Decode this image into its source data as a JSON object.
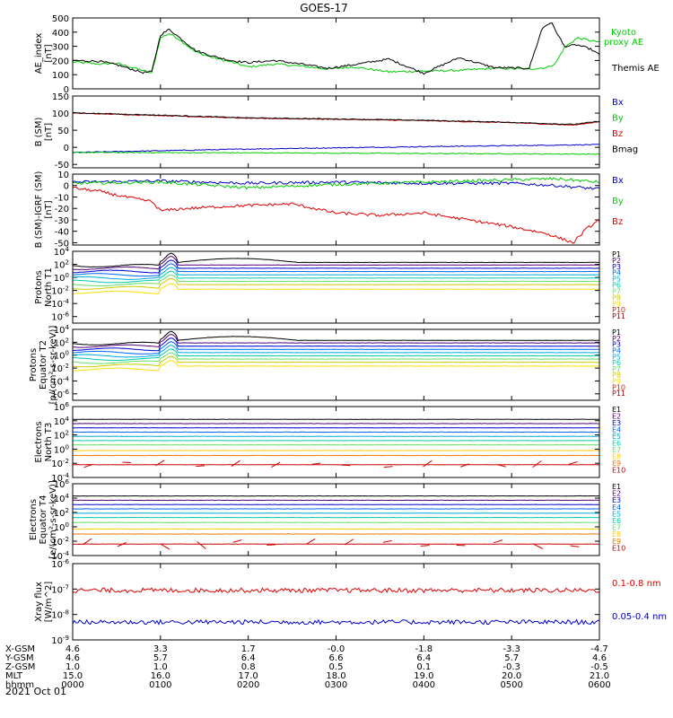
{
  "title": "GOES-17",
  "date_label": "2021 Oct 01",
  "chart_data": [
    {
      "type": "line",
      "ylabel": [
        "AE_index",
        "[nT]"
      ],
      "ylim": [
        0,
        500
      ],
      "yticks": [
        "0",
        "100",
        "200",
        "300",
        "400",
        "500"
      ],
      "legend_placement": "right",
      "series": [
        {
          "name": "Kyoto\nproxy AE",
          "color": "#00cc00",
          "x": [
            0.0,
            0.3,
            0.5,
            0.8,
            0.9,
            1.0,
            1.1,
            1.2,
            1.4,
            1.6,
            1.8,
            2.0,
            2.3,
            2.6,
            2.9,
            3.2,
            3.6,
            4.0,
            4.4,
            4.8,
            5.2,
            5.4,
            5.5,
            5.6,
            5.75,
            5.9,
            6.0
          ],
          "y": [
            190,
            175,
            180,
            130,
            110,
            360,
            390,
            355,
            260,
            220,
            190,
            155,
            175,
            160,
            140,
            155,
            120,
            125,
            130,
            145,
            140,
            150,
            180,
            290,
            360,
            340,
            330
          ]
        },
        {
          "name": "Themis AE",
          "color": "#000000",
          "x": [
            0.0,
            0.3,
            0.5,
            0.8,
            0.9,
            1.0,
            1.1,
            1.2,
            1.4,
            1.6,
            1.8,
            2.0,
            2.3,
            2.6,
            2.9,
            3.2,
            3.6,
            4.0,
            4.4,
            4.8,
            5.2,
            5.35,
            5.45,
            5.6,
            5.75,
            5.9,
            6.0
          ],
          "y": [
            200,
            195,
            170,
            115,
            120,
            380,
            420,
            370,
            270,
            230,
            200,
            185,
            200,
            175,
            145,
            170,
            210,
            110,
            220,
            150,
            145,
            430,
            470,
            300,
            310,
            280,
            240
          ]
        }
      ]
    },
    {
      "type": "line",
      "ylabel": [
        "B (SM)",
        "[nT]"
      ],
      "ylim": [
        -60,
        150
      ],
      "yticks": [
        "-50",
        "0",
        "50",
        "100",
        "150"
      ],
      "legend_placement": "right",
      "series": [
        {
          "name": "Bx",
          "color": "#0000cc",
          "x": [
            0,
            2,
            4,
            6
          ],
          "y": [
            -15,
            -5,
            2,
            8
          ]
        },
        {
          "name": "By",
          "color": "#00cc00",
          "x": [
            0,
            2,
            4,
            6
          ],
          "y": [
            -15,
            -16,
            -18,
            -20
          ]
        },
        {
          "name": "Bz",
          "color": "#dd0000",
          "x": [
            0,
            1,
            2,
            3,
            4,
            5,
            5.7,
            6
          ],
          "y": [
            100,
            93,
            85,
            82,
            78,
            72,
            65,
            75
          ]
        },
        {
          "name": "Bmag",
          "color": "#000000",
          "x": [
            0,
            1,
            2,
            3,
            4,
            5,
            5.7,
            6
          ],
          "y": [
            101,
            94,
            86,
            83,
            79,
            73,
            67,
            76
          ]
        }
      ]
    },
    {
      "type": "line",
      "ylabel": [
        "B (SM)-IGRF (SM)",
        "[nT]"
      ],
      "ylim": [
        -52,
        10
      ],
      "yticks": [
        "-50",
        "-40",
        "-30",
        "-20",
        "-10",
        "0",
        "10"
      ],
      "legend_placement": "right",
      "series": [
        {
          "name": "Bx",
          "color": "#0000cc",
          "x": [
            0,
            1,
            2,
            3,
            4,
            5,
            5.5,
            6
          ],
          "y": [
            3,
            4,
            2,
            3,
            2,
            2,
            0,
            -3
          ]
        },
        {
          "name": "By",
          "color": "#00cc00",
          "x": [
            0,
            1,
            2,
            3,
            4,
            5,
            5.5,
            6
          ],
          "y": [
            2,
            3,
            -2,
            1,
            3,
            5,
            6,
            3
          ]
        },
        {
          "name": "Bz",
          "color": "#dd0000",
          "x": [
            0,
            0.3,
            0.6,
            0.9,
            1.0,
            1.3,
            1.8,
            2.5,
            3.0,
            3.5,
            4.0,
            4.5,
            5.0,
            5.4,
            5.7,
            5.85,
            6.0
          ],
          "y": [
            -2,
            -5,
            -10,
            -14,
            -22,
            -20,
            -18,
            -16,
            -24,
            -26,
            -24,
            -30,
            -36,
            -42,
            -50,
            -38,
            -30
          ]
        }
      ]
    },
    {
      "type": "line",
      "log": true,
      "ylabel": [
        "Protons",
        "North T1"
      ],
      "ylim_exp": [
        -7,
        4
      ],
      "yticks": [
        "10^-6",
        "10^-4",
        "10^-2",
        "10^0",
        "10^2",
        "10^4"
      ],
      "legend_placement": "right",
      "series": [
        {
          "name": "P1",
          "color": "#000000",
          "base": 2.3
        },
        {
          "name": "P2",
          "color": "#550077",
          "base": 1.9
        },
        {
          "name": "P3",
          "color": "#0000cc",
          "base": 1.4
        },
        {
          "name": "P4",
          "color": "#0066ee",
          "base": 0.9
        },
        {
          "name": "P5",
          "color": "#00aadd",
          "base": 0.4
        },
        {
          "name": "P6",
          "color": "#00ccaa",
          "base": -0.1
        },
        {
          "name": "P7",
          "color": "#66dd66",
          "base": -0.6
        },
        {
          "name": "P8",
          "color": "#cccc00",
          "base": -1.1
        },
        {
          "name": "P9",
          "color": "#ffdd00",
          "base": -1.8
        },
        {
          "name": "P10",
          "color": "#dd2200",
          "base": null
        },
        {
          "name": "P11",
          "color": "#aa0000",
          "base": null
        }
      ]
    },
    {
      "type": "line",
      "log": true,
      "ylabel": [
        "Protons",
        "Equator T2",
        "[p/(cm²-s-sr-keV)]"
      ],
      "ylim_exp": [
        -7,
        4
      ],
      "yticks": [
        "10^-6",
        "10^-4",
        "10^-2",
        "10^0",
        "10^2",
        "10^4"
      ],
      "legend_placement": "right",
      "series": [
        {
          "name": "P1",
          "color": "#000000",
          "base": 2.3
        },
        {
          "name": "P2",
          "color": "#550077",
          "base": 1.9
        },
        {
          "name": "P3",
          "color": "#0000cc",
          "base": 1.4
        },
        {
          "name": "P4",
          "color": "#0066ee",
          "base": 0.9
        },
        {
          "name": "P5",
          "color": "#00aadd",
          "base": 0.4
        },
        {
          "name": "P6",
          "color": "#00ccaa",
          "base": -0.1
        },
        {
          "name": "P7",
          "color": "#66dd66",
          "base": -0.6
        },
        {
          "name": "P8",
          "color": "#cccc00",
          "base": -1.1
        },
        {
          "name": "P9",
          "color": "#ffdd00",
          "base": -1.7
        },
        {
          "name": "P10",
          "color": "#dd2200",
          "base": null
        },
        {
          "name": "P11",
          "color": "#aa0000",
          "base": null
        }
      ]
    },
    {
      "type": "line",
      "log": true,
      "ylabel": [
        "Electrons",
        "North T3"
      ],
      "ylim_exp": [
        -4,
        6
      ],
      "yticks": [
        "10^-4",
        "10^-2",
        "10^0",
        "10^2",
        "10^4",
        "10^6"
      ],
      "legend_placement": "right",
      "series": [
        {
          "name": "E1",
          "color": "#000000",
          "base": 4.2
        },
        {
          "name": "E2",
          "color": "#550077",
          "base": 3.6
        },
        {
          "name": "E3",
          "color": "#0000cc",
          "base": 3.0
        },
        {
          "name": "E4",
          "color": "#0066ee",
          "base": 2.4
        },
        {
          "name": "E5",
          "color": "#00aadd",
          "base": 1.8
        },
        {
          "name": "E6",
          "color": "#00ccaa",
          "base": 1.2
        },
        {
          "name": "E7",
          "color": "#66dd66",
          "base": 0.6
        },
        {
          "name": "E8",
          "color": "#ffcc00",
          "base": -0.2
        },
        {
          "name": "E9",
          "color": "#ee7700",
          "base": -0.9
        },
        {
          "name": "E10",
          "color": "#cc0000",
          "base": -2.2
        }
      ]
    },
    {
      "type": "line",
      "log": true,
      "ylabel": [
        "Electrons",
        "Equator T4",
        "[e/(cm²-s-sr-keV)]"
      ],
      "ylim_exp": [
        -4,
        6
      ],
      "yticks": [
        "10^-4",
        "10^-2",
        "10^0",
        "10^2",
        "10^4",
        "10^6"
      ],
      "legend_placement": "right",
      "series": [
        {
          "name": "E1",
          "color": "#000000",
          "base": 4.3
        },
        {
          "name": "E2",
          "color": "#550077",
          "base": 3.7
        },
        {
          "name": "E3",
          "color": "#0000cc",
          "base": 3.1
        },
        {
          "name": "E4",
          "color": "#0066ee",
          "base": 2.5
        },
        {
          "name": "E5",
          "color": "#00aadd",
          "base": 1.9
        },
        {
          "name": "E6",
          "color": "#00ccaa",
          "base": 1.3
        },
        {
          "name": "E7",
          "color": "#66dd66",
          "base": 0.6
        },
        {
          "name": "E8",
          "color": "#ffcc00",
          "base": -0.3
        },
        {
          "name": "E9",
          "color": "#ee7700",
          "base": -1.0
        },
        {
          "name": "E10",
          "color": "#cc0000",
          "base": -2.4
        }
      ]
    },
    {
      "type": "line",
      "log": true,
      "ylabel": [
        "Xray flux",
        "[W/m^2]"
      ],
      "ylim_exp": [
        -9,
        -6
      ],
      "yticks": [
        "10^-9",
        "10^-8",
        "10^-7",
        "10^-6"
      ],
      "legend_placement": "right",
      "series": [
        {
          "name": "0.1-0.8 nm",
          "color": "#dd0000",
          "base": -7.05
        },
        {
          "name": "0.05-0.4 nm",
          "color": "#0000cc",
          "base": -8.3
        }
      ]
    }
  ],
  "x_axis": {
    "range": [
      0,
      6
    ],
    "row_labels": [
      "X-GSM",
      "Y-GSM",
      "Z-GSM",
      "MLT",
      "hhmm"
    ],
    "columns": [
      [
        "4.6",
        "4.6",
        "1.0",
        "15.0",
        "0000"
      ],
      [
        "3.3",
        "5.7",
        "1.0",
        "16.0",
        "0100"
      ],
      [
        "1.7",
        "6.4",
        "0.8",
        "17.0",
        "0200"
      ],
      [
        "-0.0",
        "6.6",
        "0.5",
        "18.0",
        "0300"
      ],
      [
        "-1.8",
        "6.4",
        "0.1",
        "19.0",
        "0400"
      ],
      [
        "-3.3",
        "5.7",
        "-0.3",
        "20.0",
        "0500"
      ],
      [
        "-4.7",
        "4.6",
        "-0.5",
        "21.0",
        "0600"
      ]
    ]
  }
}
